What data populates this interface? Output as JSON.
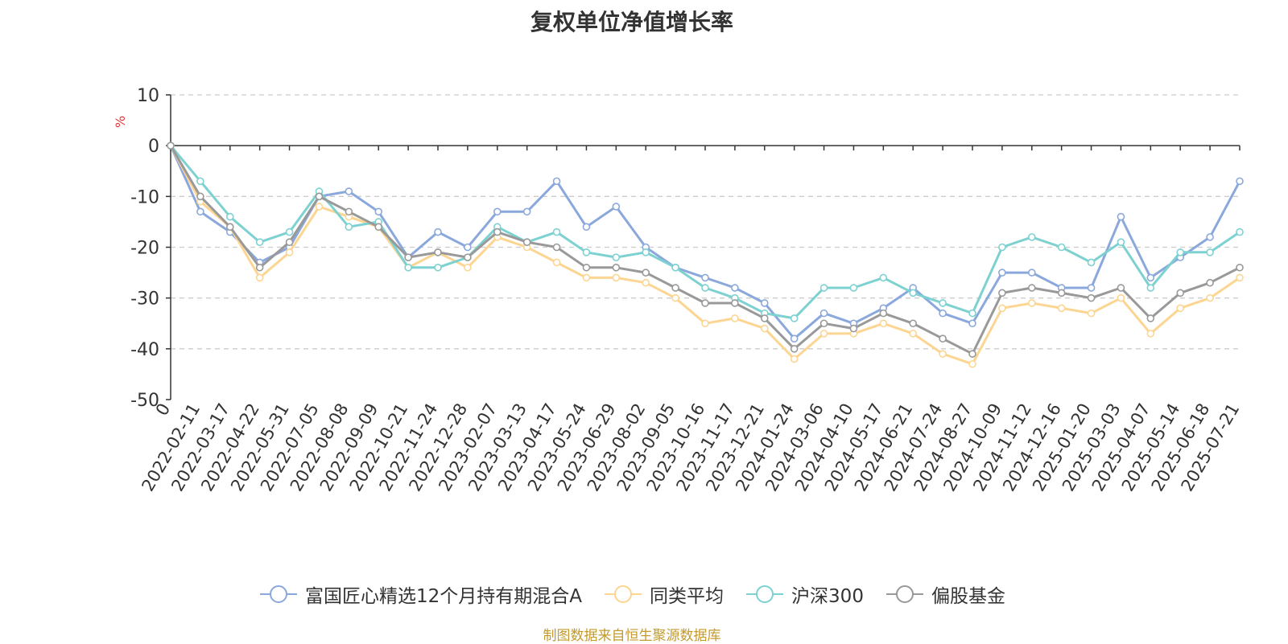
{
  "chart_data": {
    "type": "line",
    "title": "复权单位净值增长率",
    "ylabel": "%",
    "ylim": [
      -50,
      10
    ],
    "yticks": [
      10,
      0,
      -10,
      -20,
      -30,
      -40,
      -50
    ],
    "grid": true,
    "legend_position": "bottom",
    "x": [
      "0",
      "2022-02-11",
      "2022-03-17",
      "2022-04-22",
      "2022-05-31",
      "2022-07-05",
      "2022-08-08",
      "2022-09-09",
      "2022-10-21",
      "2022-11-24",
      "2022-12-28",
      "2023-02-07",
      "2023-03-13",
      "2023-04-17",
      "2023-05-24",
      "2023-06-29",
      "2023-08-02",
      "2023-09-05",
      "2023-10-16",
      "2023-11-17",
      "2023-12-21",
      "2024-01-24",
      "2024-03-06",
      "2024-04-10",
      "2024-05-17",
      "2024-06-21",
      "2024-07-24",
      "2024-08-27",
      "2024-10-09",
      "2024-11-12",
      "2024-12-16",
      "2025-01-20",
      "2025-03-03",
      "2025-04-07",
      "2025-05-14",
      "2025-06-18",
      "2025-07-21"
    ],
    "series": [
      {
        "name": "富国匠心精选12个月持有期混合A",
        "color": "#8aa8dc",
        "values": [
          0,
          -13,
          -17,
          -23,
          -20,
          -10,
          -9,
          -13,
          -22,
          -17,
          -20,
          -13,
          -13,
          -7,
          -16,
          -12,
          -20,
          -24,
          -26,
          -28,
          -31,
          -38,
          -33,
          -35,
          -32,
          -28,
          -33,
          -35,
          -25,
          -25,
          -28,
          -28,
          -14,
          -26,
          -22,
          -18,
          -7
        ]
      },
      {
        "name": "同类平均",
        "color": "#fcd592",
        "values": [
          0,
          -11,
          -16,
          -26,
          -21,
          -12,
          -14,
          -16,
          -24,
          -21,
          -24,
          -18,
          -20,
          -23,
          -26,
          -26,
          -27,
          -30,
          -35,
          -34,
          -36,
          -42,
          -37,
          -37,
          -35,
          -37,
          -41,
          -43,
          -32,
          -31,
          -32,
          -33,
          -30,
          -37,
          -32,
          -30,
          -26
        ]
      },
      {
        "name": "沪深300",
        "color": "#7dd1d1",
        "values": [
          0,
          -7,
          -14,
          -19,
          -17,
          -9,
          -16,
          -15,
          -24,
          -24,
          -22,
          -16,
          -19,
          -17,
          -21,
          -22,
          -21,
          -24,
          -28,
          -30,
          -33,
          -34,
          -28,
          -28,
          -26,
          -29,
          -31,
          -33,
          -20,
          -18,
          -20,
          -23,
          -19,
          -28,
          -21,
          -21,
          -17
        ]
      },
      {
        "name": "偏股基金",
        "color": "#999999",
        "values": [
          0,
          -10,
          -16,
          -24,
          -19,
          -10,
          -13,
          -16,
          -22,
          -21,
          -22,
          -17,
          -19,
          -20,
          -24,
          -24,
          -25,
          -28,
          -31,
          -31,
          -34,
          -40,
          -35,
          -36,
          -33,
          -35,
          -38,
          -41,
          -29,
          -28,
          -29,
          -30,
          -28,
          -34,
          -29,
          -27,
          -24
        ]
      }
    ]
  },
  "source_note": "制图数据来自恒生聚源数据库"
}
